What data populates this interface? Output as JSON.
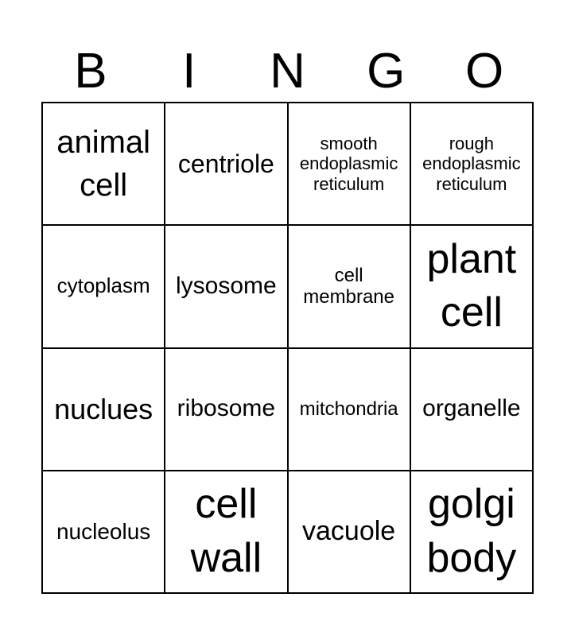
{
  "header": [
    "B",
    "I",
    "N",
    "G",
    "O"
  ],
  "cells": [
    "animal cell",
    "centriole",
    "smooth endoplasmic reticulum",
    "rough endoplasmic reticulum",
    "cytoplasm",
    "lysosome",
    "cell membrane",
    "plant cell",
    "nuclues",
    "ribosome",
    "mitchondria",
    "organelle",
    "nucleolus",
    "cell wall",
    "vacuole",
    "golgi body"
  ]
}
